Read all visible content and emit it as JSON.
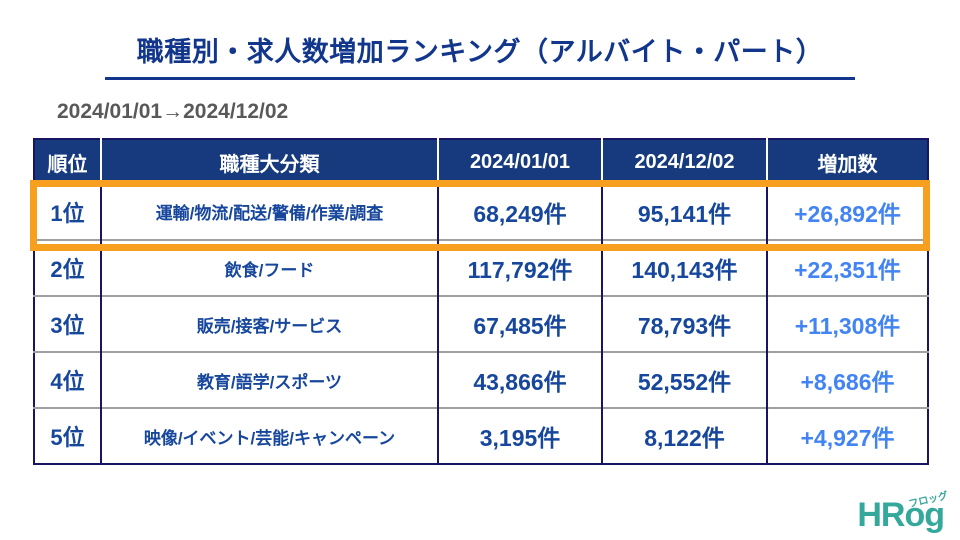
{
  "title": "職種別・求人数増加ランキング（アルバイト・パート）",
  "date_range": "2024/01/01→2024/12/02",
  "table": {
    "headers": [
      "順位",
      "職種大分類",
      "2024/01/01",
      "2024/12/02",
      "増加数"
    ],
    "rows": [
      {
        "rank": "1位",
        "category": "運輸/物流/配送/警備/作業/調査",
        "start": "68,249件",
        "end": "95,141件",
        "increase": "+26,892件",
        "highlighted": true
      },
      {
        "rank": "2位",
        "category": "飲食/フード",
        "start": "117,792件",
        "end": "140,143件",
        "increase": "+22,351件",
        "highlighted": false
      },
      {
        "rank": "3位",
        "category": "販売/接客/サービス",
        "start": "67,485件",
        "end": "78,793件",
        "increase": "+11,308件",
        "highlighted": false
      },
      {
        "rank": "4位",
        "category": "教育/語学/スポーツ",
        "start": "43,866件",
        "end": "52,552件",
        "increase": "+8,686件",
        "highlighted": false
      },
      {
        "rank": "5位",
        "category": "映像/イベント/芸能/キャンペーン",
        "start": "3,195件",
        "end": "8,122件",
        "increase": "+4,927件",
        "highlighted": false
      }
    ]
  },
  "logo": {
    "text": "HRog",
    "furigana": "フロッグ"
  },
  "colors": {
    "title_navy": "#11368b",
    "header_bg_navy": "#163a7d",
    "body_text_navy": "#17479c",
    "increase_blue": "#4384f4",
    "highlight_orange": "#f7a01f",
    "date_gray": "#595959",
    "grid_navy": "#1a1464",
    "grid_gray": "#a0a0a0",
    "logo_teal": "#35a89c"
  },
  "chart_data": {
    "type": "table",
    "title": "職種別・求人数増加ランキング（アルバイト・パート）",
    "period": {
      "from": "2024/01/01",
      "to": "2024/12/02"
    },
    "columns": [
      "順位",
      "職種大分類",
      "2024/01/01",
      "2024/12/02",
      "増加数"
    ],
    "rows": [
      [
        "1位",
        "運輸/物流/配送/警備/作業/調査",
        68249,
        95141,
        26892
      ],
      [
        "2位",
        "飲食/フード",
        117792,
        140143,
        22351
      ],
      [
        "3位",
        "販売/接客/サービス",
        67485,
        78793,
        11308
      ],
      [
        "4位",
        "教育/語学/スポーツ",
        43866,
        52552,
        8686
      ],
      [
        "5位",
        "映像/イベント/芸能/キャンペーン",
        3195,
        8122,
        4927
      ]
    ],
    "highlighted_row_index": 0
  }
}
